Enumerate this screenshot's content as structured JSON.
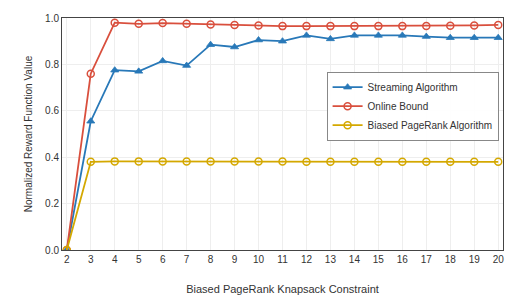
{
  "chart_data": {
    "type": "line",
    "x": [
      2,
      3,
      4,
      5,
      6,
      7,
      8,
      9,
      10,
      11,
      12,
      13,
      14,
      15,
      16,
      17,
      18,
      19,
      20
    ],
    "series": [
      {
        "name": "Streaming Algorithm",
        "color": "#2878b8",
        "marker": "triangle-up",
        "values": [
          0.0,
          0.555,
          0.775,
          0.77,
          0.815,
          0.795,
          0.885,
          0.875,
          0.905,
          0.9,
          0.925,
          0.91,
          0.925,
          0.925,
          0.925,
          0.92,
          0.915,
          0.915,
          0.915
        ]
      },
      {
        "name": "Online Bound",
        "color": "#d94f3d",
        "marker": "circle-open",
        "values": [
          0.0,
          0.76,
          0.98,
          0.975,
          0.978,
          0.975,
          0.972,
          0.97,
          0.968,
          0.965,
          0.965,
          0.965,
          0.965,
          0.965,
          0.965,
          0.966,
          0.967,
          0.968,
          0.97
        ]
      },
      {
        "name": "Biased PageRank Algorithm",
        "color": "#d4a800",
        "marker": "circle-open",
        "values": [
          0.0,
          0.38,
          0.382,
          0.382,
          0.382,
          0.381,
          0.381,
          0.381,
          0.381,
          0.381,
          0.38,
          0.38,
          0.38,
          0.38,
          0.38,
          0.38,
          0.38,
          0.38,
          0.38
        ]
      }
    ],
    "x_label": "Biased PageRank Knapsack Constraint",
    "y_label": "Normalized Reward Function Value",
    "xlim": [
      1.8,
      20.2
    ],
    "xticks": [
      2,
      3,
      4,
      5,
      6,
      7,
      8,
      9,
      10,
      11,
      12,
      13,
      14,
      15,
      16,
      17,
      18,
      19,
      20
    ],
    "ylim": [
      0,
      1.0
    ],
    "yticks": [
      {
        "value": 0,
        "label": "0.0"
      },
      0.2,
      0.4,
      0.6,
      0.8,
      {
        "value": 1.0,
        "label": "1.0"
      }
    ],
    "grid": true,
    "legend": "right"
  }
}
